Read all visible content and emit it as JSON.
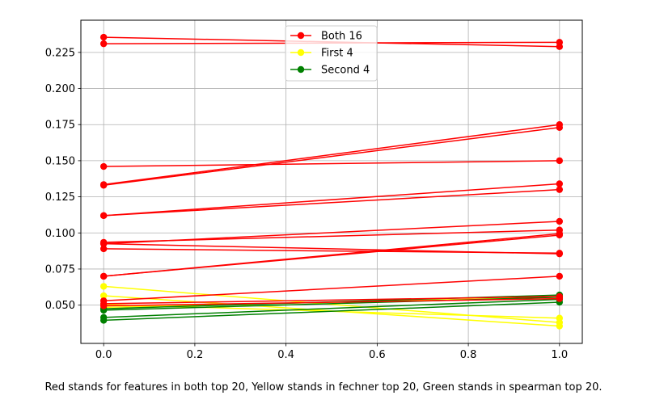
{
  "caption": "Red stands for features in both top 20, Yellow stands in fechner top 20, Green stands in spearman top 20.",
  "chart_data": {
    "type": "line",
    "title": "",
    "xlabel": "",
    "ylabel": "",
    "xlim": [
      -0.05,
      1.05
    ],
    "ylim": [
      0.0235,
      0.2473
    ],
    "grid": true,
    "legend_position": "top-center",
    "x_ticks": [
      "0.0",
      "0.2",
      "0.4",
      "0.6",
      "0.8",
      "1.0"
    ],
    "x_tick_values": [
      0,
      0.2,
      0.4,
      0.6,
      0.8,
      1.0
    ],
    "y_ticks": [
      "0.050",
      "0.075",
      "0.100",
      "0.125",
      "0.150",
      "0.175",
      "0.200",
      "0.225"
    ],
    "y_tick_values": [
      0.05,
      0.075,
      0.1,
      0.125,
      0.15,
      0.175,
      0.2,
      0.225
    ],
    "legend": [
      {
        "name": "Both 16",
        "color": "#ff0000"
      },
      {
        "name": "First 4",
        "color": "#ffff00"
      },
      {
        "name": "Second 4",
        "color": "#008000"
      }
    ],
    "series": [
      {
        "group": "Both 16",
        "color": "#ff0000",
        "x": [
          0,
          1
        ],
        "y": [
          0.2355,
          0.229
        ]
      },
      {
        "group": "Both 16",
        "color": "#ff0000",
        "x": [
          0,
          1
        ],
        "y": [
          0.231,
          0.232
        ]
      },
      {
        "group": "Both 16",
        "color": "#ff0000",
        "x": [
          0,
          1
        ],
        "y": [
          0.146,
          0.15
        ]
      },
      {
        "group": "Both 16",
        "color": "#ff0000",
        "x": [
          0,
          1
        ],
        "y": [
          0.1335,
          0.175
        ]
      },
      {
        "group": "Both 16",
        "color": "#ff0000",
        "x": [
          0,
          1
        ],
        "y": [
          0.133,
          0.173
        ]
      },
      {
        "group": "Both 16",
        "color": "#ff0000",
        "x": [
          0,
          1
        ],
        "y": [
          0.112,
          0.134
        ]
      },
      {
        "group": "Both 16",
        "color": "#ff0000",
        "x": [
          0,
          1
        ],
        "y": [
          0.112,
          0.13
        ]
      },
      {
        "group": "Both 16",
        "color": "#ff0000",
        "x": [
          0,
          1
        ],
        "y": [
          0.0935,
          0.102
        ]
      },
      {
        "group": "Both 16",
        "color": "#ff0000",
        "x": [
          0,
          1
        ],
        "y": [
          0.0925,
          0.108
        ]
      },
      {
        "group": "Both 16",
        "color": "#ff0000",
        "x": [
          0,
          1
        ],
        "y": [
          0.0925,
          0.0855
        ]
      },
      {
        "group": "Both 16",
        "color": "#ff0000",
        "x": [
          0,
          1
        ],
        "y": [
          0.089,
          0.086
        ]
      },
      {
        "group": "Both 16",
        "color": "#ff0000",
        "x": [
          0,
          1
        ],
        "y": [
          0.07,
          0.0985
        ]
      },
      {
        "group": "Both 16",
        "color": "#ff0000",
        "x": [
          0,
          1
        ],
        "y": [
          0.07,
          0.0995
        ]
      },
      {
        "group": "Both 16",
        "color": "#ff0000",
        "x": [
          0,
          1
        ],
        "y": [
          0.053,
          0.07
        ]
      },
      {
        "group": "Both 16",
        "color": "#ff0000",
        "x": [
          0,
          1
        ],
        "y": [
          0.051,
          0.056
        ]
      },
      {
        "group": "Both 16",
        "color": "#ff0000",
        "x": [
          0,
          1
        ],
        "y": [
          0.0495,
          0.0545
        ]
      },
      {
        "group": "First 4",
        "color": "#ffff00",
        "x": [
          0,
          1
        ],
        "y": [
          0.063,
          0.038
        ]
      },
      {
        "group": "First 4",
        "color": "#ffff00",
        "x": [
          0,
          1
        ],
        "y": [
          0.0565,
          0.0355
        ]
      },
      {
        "group": "First 4",
        "color": "#ffff00",
        "x": [
          0,
          1
        ],
        "y": [
          0.0505,
          0.041
        ]
      },
      {
        "group": "First 4",
        "color": "#ffff00",
        "x": [
          0,
          1
        ],
        "y": [
          0.0485,
          0.0555
        ]
      },
      {
        "group": "Second 4",
        "color": "#008000",
        "x": [
          0,
          1
        ],
        "y": [
          0.0475,
          0.057
        ]
      },
      {
        "group": "Second 4",
        "color": "#008000",
        "x": [
          0,
          1
        ],
        "y": [
          0.0465,
          0.0555
        ]
      },
      {
        "group": "Second 4",
        "color": "#008000",
        "x": [
          0,
          1
        ],
        "y": [
          0.0415,
          0.054
        ]
      },
      {
        "group": "Second 4",
        "color": "#008000",
        "x": [
          0,
          1
        ],
        "y": [
          0.0395,
          0.052
        ]
      }
    ]
  }
}
